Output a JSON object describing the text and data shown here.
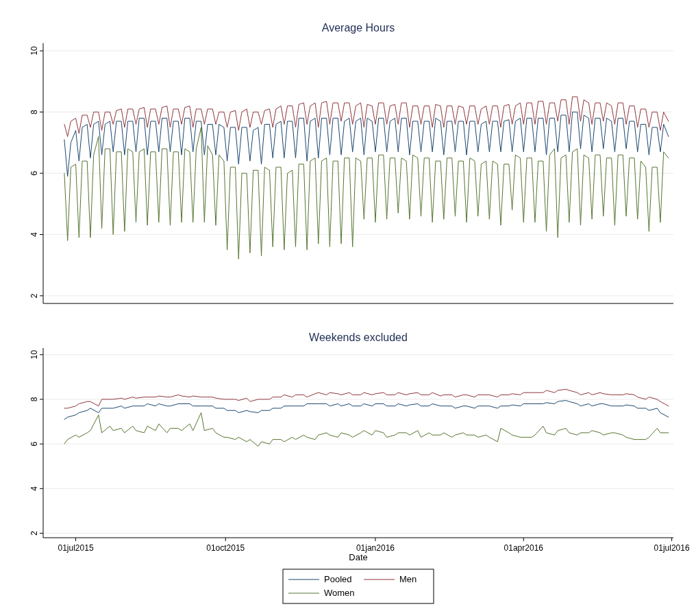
{
  "chart_data": [
    {
      "type": "line",
      "title": "Average Hours",
      "xlim": [
        "2015-06-11",
        "2016-07-02"
      ],
      "ylim": [
        1.75,
        10.25
      ],
      "yticks": [
        2,
        4,
        6,
        8,
        10
      ],
      "grid": "y",
      "tick_labels": "y",
      "legend": false,
      "x": [
        "2015-06-24",
        "2015-06-26",
        "2015-06-28",
        "2015-07-01",
        "2015-07-03",
        "2015-07-05",
        "2015-07-08",
        "2015-07-10",
        "2015-07-12",
        "2015-07-15",
        "2015-07-17",
        "2015-07-19",
        "2015-07-22",
        "2015-07-24",
        "2015-07-26",
        "2015-07-29",
        "2015-07-31",
        "2015-08-02",
        "2015-08-05",
        "2015-08-07",
        "2015-08-09",
        "2015-08-12",
        "2015-08-14",
        "2015-08-16",
        "2015-08-19",
        "2015-08-21",
        "2015-08-23",
        "2015-08-26",
        "2015-08-28",
        "2015-08-30",
        "2015-09-02",
        "2015-09-04",
        "2015-09-06",
        "2015-09-09",
        "2015-09-11",
        "2015-09-13",
        "2015-09-16",
        "2015-09-18",
        "2015-09-20",
        "2015-09-23",
        "2015-09-25",
        "2015-09-27",
        "2015-09-30",
        "2015-10-02",
        "2015-10-04",
        "2015-10-07",
        "2015-10-09",
        "2015-10-11",
        "2015-10-14",
        "2015-10-16",
        "2015-10-18",
        "2015-10-21",
        "2015-10-23",
        "2015-10-25",
        "2015-10-28",
        "2015-10-30",
        "2015-11-01",
        "2015-11-04",
        "2015-11-06",
        "2015-11-08",
        "2015-11-11",
        "2015-11-13",
        "2015-11-15",
        "2015-11-18",
        "2015-11-20",
        "2015-11-22",
        "2015-11-25",
        "2015-11-27",
        "2015-11-29",
        "2015-12-02",
        "2015-12-04",
        "2015-12-06",
        "2015-12-09",
        "2015-12-11",
        "2015-12-13",
        "2015-12-16",
        "2015-12-18",
        "2015-12-20",
        "2015-12-23",
        "2015-12-25",
        "2015-12-27",
        "2015-12-30",
        "2016-01-01",
        "2016-01-03",
        "2016-01-06",
        "2016-01-08",
        "2016-01-10",
        "2016-01-13",
        "2016-01-15",
        "2016-01-17",
        "2016-01-20",
        "2016-01-22",
        "2016-01-24",
        "2016-01-27",
        "2016-01-29",
        "2016-01-31",
        "2016-02-03",
        "2016-02-05",
        "2016-02-07",
        "2016-02-10",
        "2016-02-12",
        "2016-02-14",
        "2016-02-17",
        "2016-02-19",
        "2016-02-21",
        "2016-02-24",
        "2016-02-26",
        "2016-02-28",
        "2016-03-02",
        "2016-03-04",
        "2016-03-06",
        "2016-03-09",
        "2016-03-11",
        "2016-03-13",
        "2016-03-16",
        "2016-03-18",
        "2016-03-20",
        "2016-03-23",
        "2016-03-25",
        "2016-03-27",
        "2016-03-30",
        "2016-04-01",
        "2016-04-03",
        "2016-04-06",
        "2016-04-08",
        "2016-04-10",
        "2016-04-13",
        "2016-04-15",
        "2016-04-17",
        "2016-04-20",
        "2016-04-22",
        "2016-04-24",
        "2016-04-27",
        "2016-04-29",
        "2016-05-01",
        "2016-05-04",
        "2016-05-06",
        "2016-05-08",
        "2016-05-11",
        "2016-05-13",
        "2016-05-15",
        "2016-05-18",
        "2016-05-20",
        "2016-05-22",
        "2016-05-25",
        "2016-05-27",
        "2016-05-29",
        "2016-06-01",
        "2016-06-03",
        "2016-06-05",
        "2016-06-08",
        "2016-06-10",
        "2016-06-12",
        "2016-06-15",
        "2016-06-17",
        "2016-06-19",
        "2016-06-22",
        "2016-06-24",
        "2016-06-26",
        "2016-06-29"
      ],
      "series": [
        {
          "color": "#1a476f",
          "values": [
            7.1,
            5.9,
            7.0,
            7.4,
            6.4,
            7.5,
            7.6,
            6.5,
            7.6,
            7.7,
            6.6,
            7.6,
            7.7,
            6.7,
            7.7,
            7.7,
            6.6,
            7.7,
            7.7,
            6.7,
            7.8,
            7.8,
            6.6,
            7.7,
            7.7,
            6.7,
            7.8,
            7.8,
            6.7,
            7.7,
            7.7,
            6.6,
            7.8,
            7.8,
            6.7,
            7.7,
            7.7,
            6.6,
            7.6,
            7.6,
            6.6,
            7.6,
            7.5,
            6.4,
            7.5,
            7.5,
            6.3,
            7.5,
            7.5,
            6.4,
            7.4,
            7.5,
            6.3,
            7.6,
            7.6,
            6.5,
            7.6,
            7.7,
            6.5,
            7.7,
            7.7,
            6.5,
            7.8,
            7.8,
            6.4,
            7.7,
            7.8,
            6.5,
            7.8,
            7.8,
            6.6,
            7.8,
            7.8,
            6.6,
            7.7,
            7.8,
            6.7,
            7.7,
            7.8,
            6.6,
            7.8,
            7.7,
            6.7,
            7.8,
            7.8,
            6.7,
            7.7,
            7.8,
            6.7,
            7.8,
            7.8,
            6.6,
            7.7,
            7.7,
            6.7,
            7.7,
            7.7,
            6.7,
            7.8,
            7.7,
            6.6,
            7.7,
            7.7,
            6.7,
            7.7,
            7.7,
            6.6,
            7.7,
            7.7,
            6.7,
            7.6,
            7.7,
            6.7,
            7.7,
            7.7,
            6.7,
            7.7,
            7.75,
            6.7,
            7.7,
            7.8,
            6.7,
            7.8,
            7.8,
            6.7,
            7.8,
            7.8,
            6.6,
            7.8,
            7.8,
            6.7,
            7.9,
            7.9,
            6.7,
            8.0,
            8.0,
            6.8,
            7.9,
            7.8,
            6.7,
            7.8,
            7.8,
            6.8,
            7.8,
            7.7,
            6.7,
            7.8,
            7.8,
            6.8,
            7.7,
            7.7,
            6.7,
            7.6,
            7.6,
            6.6,
            7.5,
            7.5,
            6.7,
            7.6,
            7.2
          ]
        },
        {
          "color": "#90353b",
          "values": [
            7.6,
            7.2,
            7.7,
            7.8,
            7.3,
            7.9,
            7.9,
            7.5,
            8.0,
            8.0,
            7.4,
            8.0,
            8.0,
            7.6,
            8.05,
            8.1,
            7.5,
            8.1,
            8.1,
            7.6,
            8.1,
            8.15,
            7.5,
            8.1,
            8.1,
            7.6,
            8.15,
            8.2,
            7.5,
            8.1,
            8.1,
            7.6,
            8.15,
            8.2,
            7.5,
            8.1,
            8.1,
            7.6,
            8.1,
            8.1,
            7.6,
            8.0,
            8.0,
            7.5,
            8.0,
            8.05,
            7.4,
            8.0,
            8.1,
            7.5,
            8.0,
            8.0,
            7.6,
            8.05,
            8.1,
            7.5,
            8.1,
            8.2,
            7.6,
            8.2,
            8.2,
            7.5,
            8.25,
            8.3,
            7.6,
            8.2,
            8.3,
            7.5,
            8.3,
            8.35,
            7.6,
            8.3,
            8.3,
            7.7,
            8.3,
            8.3,
            7.6,
            8.2,
            8.3,
            7.5,
            8.25,
            8.2,
            7.6,
            8.3,
            8.3,
            7.6,
            8.2,
            8.25,
            7.6,
            8.3,
            8.3,
            7.5,
            8.2,
            8.2,
            7.6,
            8.2,
            8.2,
            7.5,
            8.25,
            8.2,
            7.5,
            8.2,
            8.2,
            7.6,
            8.2,
            8.15,
            7.6,
            8.2,
            8.2,
            7.6,
            8.1,
            8.2,
            7.6,
            8.2,
            8.2,
            7.5,
            8.2,
            8.25,
            7.6,
            8.2,
            8.3,
            7.6,
            8.3,
            8.3,
            7.6,
            8.35,
            8.35,
            7.6,
            8.3,
            8.3,
            7.7,
            8.4,
            8.4,
            7.6,
            8.5,
            8.5,
            7.7,
            8.4,
            8.3,
            7.6,
            8.3,
            8.3,
            7.7,
            8.3,
            8.2,
            7.6,
            8.3,
            8.3,
            7.6,
            8.2,
            8.2,
            7.5,
            8.1,
            8.1,
            7.5,
            8.0,
            8.0,
            7.4,
            8.0,
            7.7
          ]
        },
        {
          "color": "#55752f",
          "values": [
            6.0,
            3.8,
            6.2,
            6.3,
            3.9,
            6.4,
            6.4,
            3.9,
            6.6,
            7.2,
            4.2,
            6.8,
            6.8,
            4.0,
            6.7,
            6.7,
            4.1,
            6.8,
            6.7,
            4.4,
            6.7,
            6.8,
            4.3,
            6.7,
            6.7,
            4.4,
            6.8,
            6.8,
            4.3,
            6.7,
            6.7,
            4.4,
            6.8,
            6.7,
            4.4,
            6.8,
            7.5,
            4.4,
            6.9,
            6.6,
            4.3,
            6.6,
            6.4,
            3.5,
            6.2,
            6.2,
            3.2,
            6.0,
            6.0,
            3.4,
            6.1,
            6.1,
            3.3,
            6.2,
            6.1,
            3.6,
            6.2,
            6.2,
            3.5,
            6.0,
            6.1,
            3.6,
            6.3,
            6.3,
            3.5,
            6.4,
            6.5,
            3.7,
            6.4,
            6.5,
            3.6,
            6.4,
            6.4,
            3.7,
            6.5,
            6.5,
            3.6,
            6.5,
            6.4,
            4.5,
            6.5,
            6.5,
            4.4,
            6.6,
            6.6,
            4.5,
            6.5,
            6.5,
            4.7,
            6.5,
            6.4,
            4.5,
            6.6,
            6.5,
            4.6,
            6.5,
            6.5,
            4.4,
            6.4,
            6.4,
            4.5,
            6.5,
            6.5,
            4.6,
            6.4,
            6.4,
            4.4,
            6.5,
            6.4,
            4.6,
            6.3,
            6.4,
            4.5,
            6.4,
            6.3,
            4.3,
            6.3,
            6.3,
            4.8,
            6.6,
            6.5,
            4.4,
            6.5,
            6.5,
            4.4,
            6.4,
            6.4,
            4.1,
            6.6,
            6.8,
            3.9,
            6.5,
            6.6,
            4.4,
            6.7,
            6.8,
            4.3,
            6.6,
            6.5,
            4.5,
            6.6,
            6.6,
            4.6,
            6.5,
            6.5,
            4.3,
            6.6,
            6.6,
            4.6,
            6.5,
            6.5,
            4.5,
            6.4,
            6.2,
            4.1,
            6.2,
            6.2,
            4.4,
            6.7,
            6.5
          ]
        }
      ]
    },
    {
      "type": "line",
      "title": "Weekends excluded",
      "xlabel": "Date",
      "xlim": [
        "2015-06-11",
        "2016-07-02"
      ],
      "ylim": [
        1.8,
        10.3
      ],
      "yticks": [
        2,
        4,
        6,
        8,
        10
      ],
      "xticks": [
        {
          "value": "2015-07-01",
          "label": "01jul2015"
        },
        {
          "value": "2015-10-01",
          "label": "01oct2015"
        },
        {
          "value": "2016-01-01",
          "label": "01jan2016"
        },
        {
          "value": "2016-04-01",
          "label": "01apr2016"
        },
        {
          "value": "2016-07-01",
          "label": "01jul2016"
        }
      ],
      "grid": "y",
      "legend": "bottom",
      "x": [
        "2015-06-24",
        "2015-06-26",
        "2015-07-01",
        "2015-07-03",
        "2015-07-08",
        "2015-07-10",
        "2015-07-15",
        "2015-07-17",
        "2015-07-22",
        "2015-07-24",
        "2015-07-29",
        "2015-07-31",
        "2015-08-05",
        "2015-08-07",
        "2015-08-12",
        "2015-08-14",
        "2015-08-19",
        "2015-08-21",
        "2015-08-26",
        "2015-08-28",
        "2015-09-02",
        "2015-09-04",
        "2015-09-09",
        "2015-09-11",
        "2015-09-16",
        "2015-09-18",
        "2015-09-23",
        "2015-09-25",
        "2015-09-30",
        "2015-10-02",
        "2015-10-07",
        "2015-10-09",
        "2015-10-14",
        "2015-10-16",
        "2015-10-21",
        "2015-10-23",
        "2015-10-28",
        "2015-10-30",
        "2015-11-04",
        "2015-11-06",
        "2015-11-11",
        "2015-11-13",
        "2015-11-18",
        "2015-11-20",
        "2015-11-25",
        "2015-11-27",
        "2015-12-02",
        "2015-12-04",
        "2015-12-09",
        "2015-12-11",
        "2015-12-16",
        "2015-12-18",
        "2015-12-23",
        "2015-12-25",
        "2015-12-30",
        "2016-01-01",
        "2016-01-06",
        "2016-01-08",
        "2016-01-13",
        "2016-01-15",
        "2016-01-20",
        "2016-01-22",
        "2016-01-27",
        "2016-01-29",
        "2016-02-03",
        "2016-02-05",
        "2016-02-10",
        "2016-02-12",
        "2016-02-17",
        "2016-02-19",
        "2016-02-24",
        "2016-02-26",
        "2016-03-02",
        "2016-03-04",
        "2016-03-09",
        "2016-03-11",
        "2016-03-16",
        "2016-03-18",
        "2016-03-23",
        "2016-03-25",
        "2016-03-30",
        "2016-04-01",
        "2016-04-06",
        "2016-04-08",
        "2016-04-13",
        "2016-04-15",
        "2016-04-20",
        "2016-04-22",
        "2016-04-27",
        "2016-04-29",
        "2016-05-04",
        "2016-05-06",
        "2016-05-11",
        "2016-05-13",
        "2016-05-18",
        "2016-05-20",
        "2016-05-25",
        "2016-05-27",
        "2016-06-01",
        "2016-06-03",
        "2016-06-08",
        "2016-06-10",
        "2016-06-15",
        "2016-06-17",
        "2016-06-22",
        "2016-06-24",
        "2016-06-29"
      ],
      "series": [
        {
          "name": "Pooled",
          "color": "#1a476f",
          "values": [
            7.1,
            7.2,
            7.3,
            7.4,
            7.5,
            7.6,
            7.4,
            7.6,
            7.6,
            7.6,
            7.7,
            7.6,
            7.7,
            7.7,
            7.7,
            7.8,
            7.7,
            7.8,
            7.7,
            7.7,
            7.8,
            7.8,
            7.8,
            7.7,
            7.7,
            7.7,
            7.7,
            7.6,
            7.6,
            7.5,
            7.5,
            7.4,
            7.5,
            7.45,
            7.4,
            7.5,
            7.5,
            7.6,
            7.6,
            7.7,
            7.7,
            7.7,
            7.7,
            7.8,
            7.8,
            7.8,
            7.8,
            7.7,
            7.8,
            7.7,
            7.8,
            7.7,
            7.7,
            7.8,
            7.7,
            7.8,
            7.8,
            7.7,
            7.7,
            7.8,
            7.7,
            7.75,
            7.8,
            7.7,
            7.7,
            7.8,
            7.7,
            7.7,
            7.7,
            7.6,
            7.7,
            7.7,
            7.6,
            7.7,
            7.7,
            7.7,
            7.6,
            7.7,
            7.7,
            7.75,
            7.7,
            7.8,
            7.8,
            7.8,
            7.8,
            7.85,
            7.8,
            7.9,
            7.95,
            7.9,
            7.8,
            7.7,
            7.8,
            7.7,
            7.8,
            7.8,
            7.7,
            7.7,
            7.7,
            7.75,
            7.7,
            7.6,
            7.6,
            7.5,
            7.6,
            7.4,
            7.2
          ]
        },
        {
          "name": "Men",
          "color": "#90353b",
          "values": [
            7.6,
            7.6,
            7.7,
            7.8,
            7.9,
            7.9,
            7.7,
            8.0,
            8.0,
            8.0,
            8.05,
            8.0,
            8.1,
            8.05,
            8.1,
            8.1,
            8.1,
            8.15,
            8.1,
            8.1,
            8.2,
            8.15,
            8.1,
            8.15,
            8.1,
            8.1,
            8.1,
            8.05,
            8.0,
            8.0,
            8.0,
            7.95,
            8.05,
            7.9,
            8.0,
            8.0,
            8.0,
            8.1,
            8.1,
            8.2,
            8.1,
            8.2,
            8.2,
            8.1,
            8.25,
            8.3,
            8.2,
            8.3,
            8.25,
            8.2,
            8.3,
            8.2,
            8.2,
            8.3,
            8.2,
            8.25,
            8.3,
            8.2,
            8.2,
            8.3,
            8.2,
            8.25,
            8.3,
            8.2,
            8.2,
            8.3,
            8.15,
            8.2,
            8.2,
            8.1,
            8.2,
            8.2,
            8.1,
            8.2,
            8.2,
            8.2,
            8.1,
            8.2,
            8.2,
            8.25,
            8.2,
            8.3,
            8.3,
            8.3,
            8.3,
            8.4,
            8.3,
            8.4,
            8.45,
            8.4,
            8.3,
            8.2,
            8.3,
            8.2,
            8.3,
            8.25,
            8.2,
            8.2,
            8.2,
            8.25,
            8.2,
            8.1,
            8.0,
            8.1,
            8.0,
            7.9,
            7.7
          ]
        },
        {
          "name": "Women",
          "color": "#55752f",
          "values": [
            6.0,
            6.2,
            6.4,
            6.3,
            6.5,
            6.6,
            7.3,
            6.5,
            6.8,
            6.6,
            6.7,
            6.5,
            6.8,
            6.6,
            6.5,
            6.8,
            6.6,
            6.9,
            6.5,
            6.7,
            6.7,
            6.6,
            6.9,
            6.6,
            7.4,
            6.6,
            6.7,
            6.5,
            6.3,
            6.3,
            6.2,
            6.3,
            6.1,
            6.2,
            5.9,
            6.1,
            6.0,
            6.2,
            6.2,
            6.1,
            6.3,
            6.2,
            6.4,
            6.3,
            6.2,
            6.4,
            6.5,
            6.4,
            6.3,
            6.5,
            6.4,
            6.3,
            6.5,
            6.6,
            6.4,
            6.6,
            6.5,
            6.3,
            6.4,
            6.5,
            6.5,
            6.4,
            6.6,
            6.3,
            6.5,
            6.4,
            6.4,
            6.5,
            6.3,
            6.4,
            6.5,
            6.4,
            6.4,
            6.3,
            6.4,
            6.3,
            6.1,
            6.7,
            6.5,
            6.4,
            6.3,
            6.3,
            6.3,
            6.4,
            6.8,
            6.5,
            6.4,
            6.6,
            6.7,
            6.5,
            6.4,
            6.5,
            6.5,
            6.6,
            6.5,
            6.4,
            6.5,
            6.5,
            6.4,
            6.3,
            6.2,
            6.2,
            6.2,
            6.3,
            6.7,
            6.5,
            6.5
          ]
        }
      ]
    }
  ]
}
